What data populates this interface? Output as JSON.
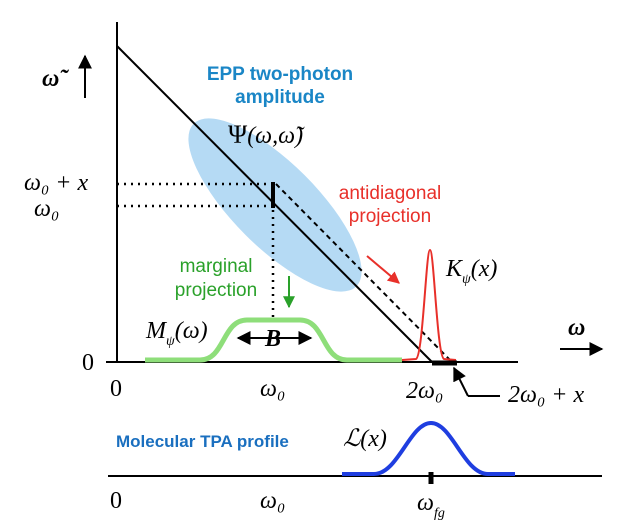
{
  "title": {
    "line1": "EPP two-photon",
    "line2": "amplitude"
  },
  "psi": {
    "psi_char": "Ψ",
    "args": "(ω,ω̃)"
  },
  "axes": {
    "y_label": "ω̃",
    "x_label": "ω",
    "origin_left": "0",
    "origin_bottom": "0"
  },
  "left_ticks": {
    "omega0_plus_x": "ω₀ + x",
    "omega0": "ω₀"
  },
  "bottom_ticks": {
    "zero": "0",
    "omega0": "ω₀",
    "two_omega0": "2ω₀",
    "two_omega0_plus_x": "2ω₀ + x"
  },
  "antidiagonal": {
    "line1": "antidiagonal",
    "line2": "projection",
    "label": "K",
    "sub": "ψ",
    "arg": "(x)"
  },
  "marginal": {
    "line1": "marginal",
    "line2": "projection",
    "label": "M",
    "sub": "ψ",
    "arg": "(ω)",
    "width_label": "B"
  },
  "molecular": {
    "title": "Molecular TPA profile",
    "label": "ℒ(x)",
    "zero": "0",
    "omega0": "ω₀",
    "omega_fg": "ω",
    "fg_sub": "fg"
  },
  "colors": {
    "ellipse": "#a8d4f2",
    "blue_text": "#1a86c6",
    "red": "#e8302a",
    "green": "#2aa12a",
    "green_curve": "#8ede7a",
    "tpa_blue": "#1f3ee0"
  }
}
